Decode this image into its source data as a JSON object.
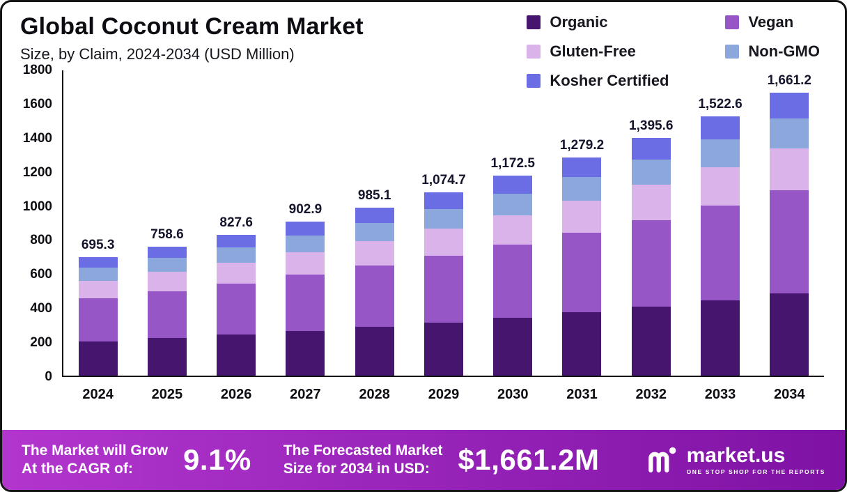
{
  "header": {
    "title": "Global Coconut Cream Market",
    "subtitle": "Size, by Claim, 2024-2034 (USD Million)"
  },
  "legend": {
    "items": [
      {
        "label": "Organic",
        "color": "#46156e"
      },
      {
        "label": "Vegan",
        "color": "#9656c6"
      },
      {
        "label": "Gluten-Free",
        "color": "#d9b3ea"
      },
      {
        "label": "Non-GMO",
        "color": "#8ba7dc"
      },
      {
        "label": "Kosher Certified",
        "color": "#6a6de4"
      }
    ]
  },
  "chart_data": {
    "type": "bar",
    "stacked": true,
    "title": "Global Coconut Cream Market",
    "subtitle": "Size, by Claim, 2024-2034 (USD Million)",
    "unit": "USD Million",
    "categories": [
      "2024",
      "2025",
      "2026",
      "2027",
      "2028",
      "2029",
      "2030",
      "2031",
      "2032",
      "2033",
      "2034"
    ],
    "series": [
      {
        "name": "Organic",
        "color": "#46156e",
        "values": [
          201.6,
          220.0,
          240.0,
          261.8,
          285.7,
          311.7,
          340.0,
          371.0,
          404.7,
          441.6,
          481.7
        ]
      },
      {
        "name": "Vegan",
        "color": "#9656c6",
        "values": [
          253.8,
          276.9,
          302.1,
          329.6,
          359.6,
          392.3,
          428.0,
          466.9,
          509.4,
          555.7,
          606.3
        ]
      },
      {
        "name": "Gluten-Free",
        "color": "#d9b3ea",
        "values": [
          102.9,
          112.3,
          122.5,
          133.6,
          145.8,
          159.1,
          173.5,
          189.3,
          206.5,
          225.3,
          245.9
        ]
      },
      {
        "name": "Non-GMO",
        "color": "#8ba7dc",
        "values": [
          74.4,
          81.2,
          88.6,
          96.6,
          105.4,
          115.0,
          125.5,
          136.9,
          149.3,
          162.9,
          177.7
        ]
      },
      {
        "name": "Kosher Certified",
        "color": "#6a6de4",
        "values": [
          62.6,
          68.2,
          74.4,
          81.3,
          88.6,
          96.6,
          105.5,
          115.1,
          125.7,
          137.1,
          149.6
        ]
      }
    ],
    "totals": [
      695.3,
      758.6,
      827.6,
      902.9,
      985.1,
      1074.7,
      1172.5,
      1279.2,
      1395.6,
      1522.6,
      1661.2
    ],
    "total_labels": [
      "695.3",
      "758.6",
      "827.6",
      "902.9",
      "985.1",
      "1,074.7",
      "1,172.5",
      "1,279.2",
      "1,395.6",
      "1,522.6",
      "1,661.2"
    ],
    "ylim": [
      0,
      1800
    ],
    "yticks": [
      0,
      200,
      400,
      600,
      800,
      1000,
      1200,
      1400,
      1600,
      1800
    ],
    "grid": false,
    "legend_position": "top-right"
  },
  "footer": {
    "cagr_label": "The Market will Grow\nAt the CAGR of:",
    "cagr_value": "9.1%",
    "forecast_label": "The Forecasted Market\nSize for 2034 in USD:",
    "forecast_value": "$1,661.2M",
    "brand": {
      "name": "market.us",
      "tagline": "ONE STOP SHOP FOR THE REPORTS"
    },
    "gradient": [
      "#b236ce",
      "#7e12a4"
    ]
  }
}
